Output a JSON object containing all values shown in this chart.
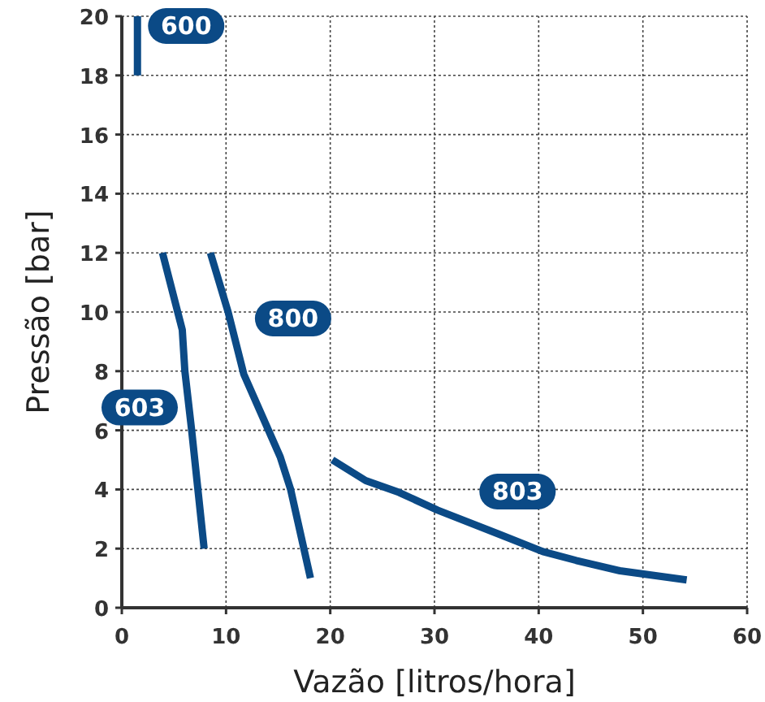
{
  "chart_data": {
    "type": "line",
    "xlabel": "Vazão [litros/hora]",
    "ylabel": "Pressão [bar]",
    "xlim": [
      0,
      60
    ],
    "xticks": [
      0,
      10,
      20,
      30,
      40,
      50,
      60
    ],
    "ylim": [
      0,
      20
    ],
    "yticks": [
      0,
      2,
      4,
      6,
      8,
      10,
      12,
      14,
      16,
      18,
      20
    ],
    "grid": true,
    "marker": "none",
    "line_style": "solid",
    "legend": false,
    "series": [
      {
        "name": "600",
        "color": "#0b4a86",
        "x": [
          1.5,
          1.5
        ],
        "values": [
          18,
          20
        ]
      },
      {
        "name": "603",
        "color": "#0b4a86",
        "x": [
          3.9,
          5.8,
          6.05,
          6.7,
          7.9
        ],
        "values": [
          12,
          9.4,
          8,
          6,
          2
        ]
      },
      {
        "name": "800",
        "color": "#0b4a86",
        "x": [
          8.5,
          10.2,
          11.7,
          15.2,
          16.2,
          18.1
        ],
        "values": [
          12,
          10,
          7.9,
          5.1,
          4,
          1
        ]
      },
      {
        "name": "803",
        "color": "#0b4a86",
        "x": [
          20.2,
          23.4,
          26.6,
          30.3,
          36.1,
          40.4,
          43.6,
          47.8,
          54.2
        ],
        "values": [
          5,
          4.3,
          3.9,
          3.3,
          2.5,
          1.9,
          1.6,
          1.25,
          0.94
        ]
      }
    ]
  }
}
